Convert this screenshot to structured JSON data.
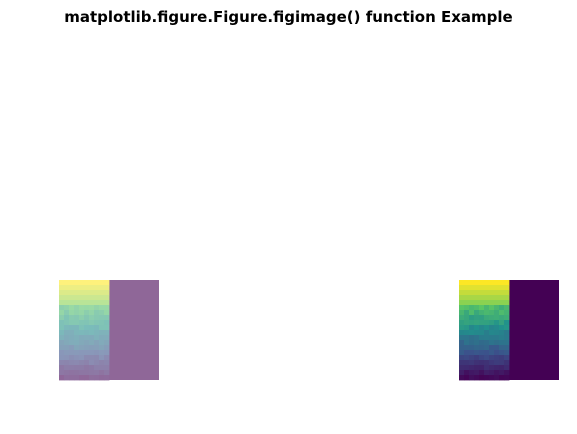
{
  "figure": {
    "title": "matplotlib.figure.Figure.figimage() function Example"
  },
  "chart_data": [
    {
      "type": "heatmap",
      "name": "figimage-1",
      "alpha": 0.6,
      "colormap": "viridis",
      "rows": 20,
      "cols": 20,
      "left_half": "gradient",
      "right_half_value": 0
    },
    {
      "type": "heatmap",
      "name": "figimage-2",
      "alpha": 1.0,
      "colormap": "viridis",
      "rows": 20,
      "cols": 20,
      "left_half": "gradient",
      "right_half_value": 0
    }
  ]
}
